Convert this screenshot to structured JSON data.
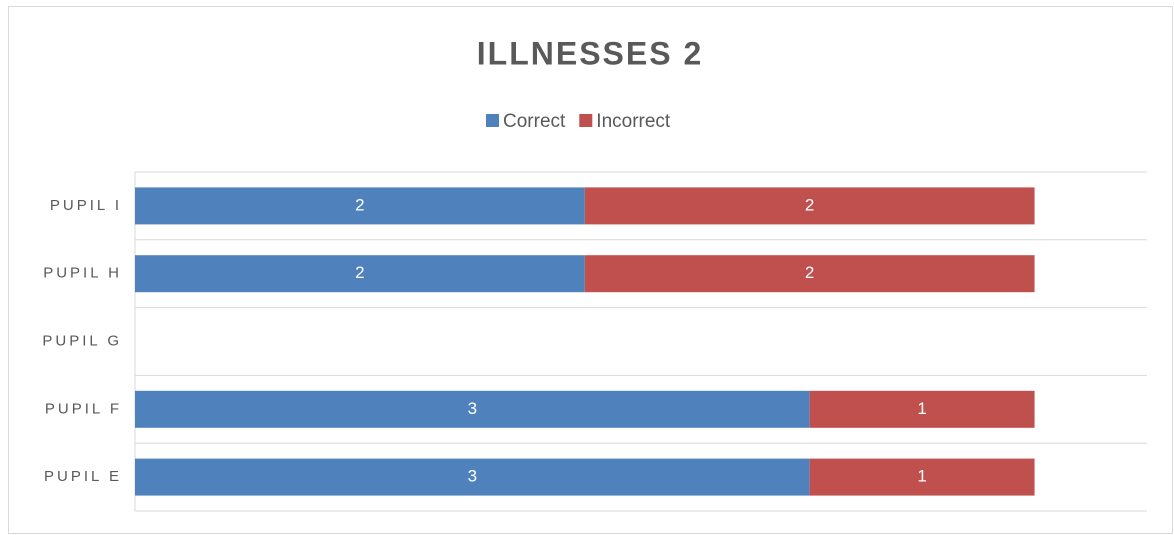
{
  "chart_data": {
    "type": "stacked-bar-horizontal",
    "title": "ILLNESSES 2",
    "categories": [
      "PUPIL E",
      "PUPIL F",
      "PUPIL G",
      "PUPIL H",
      "PUPIL I"
    ],
    "series": [
      {
        "name": "Correct",
        "color": "#4f81bd",
        "values": [
          3,
          3,
          null,
          2,
          2
        ]
      },
      {
        "name": "Incorrect",
        "color": "#c0504d",
        "values": [
          1,
          1,
          null,
          2,
          2
        ]
      }
    ],
    "xlim": [
      0,
      4.5
    ],
    "legend": "top"
  }
}
